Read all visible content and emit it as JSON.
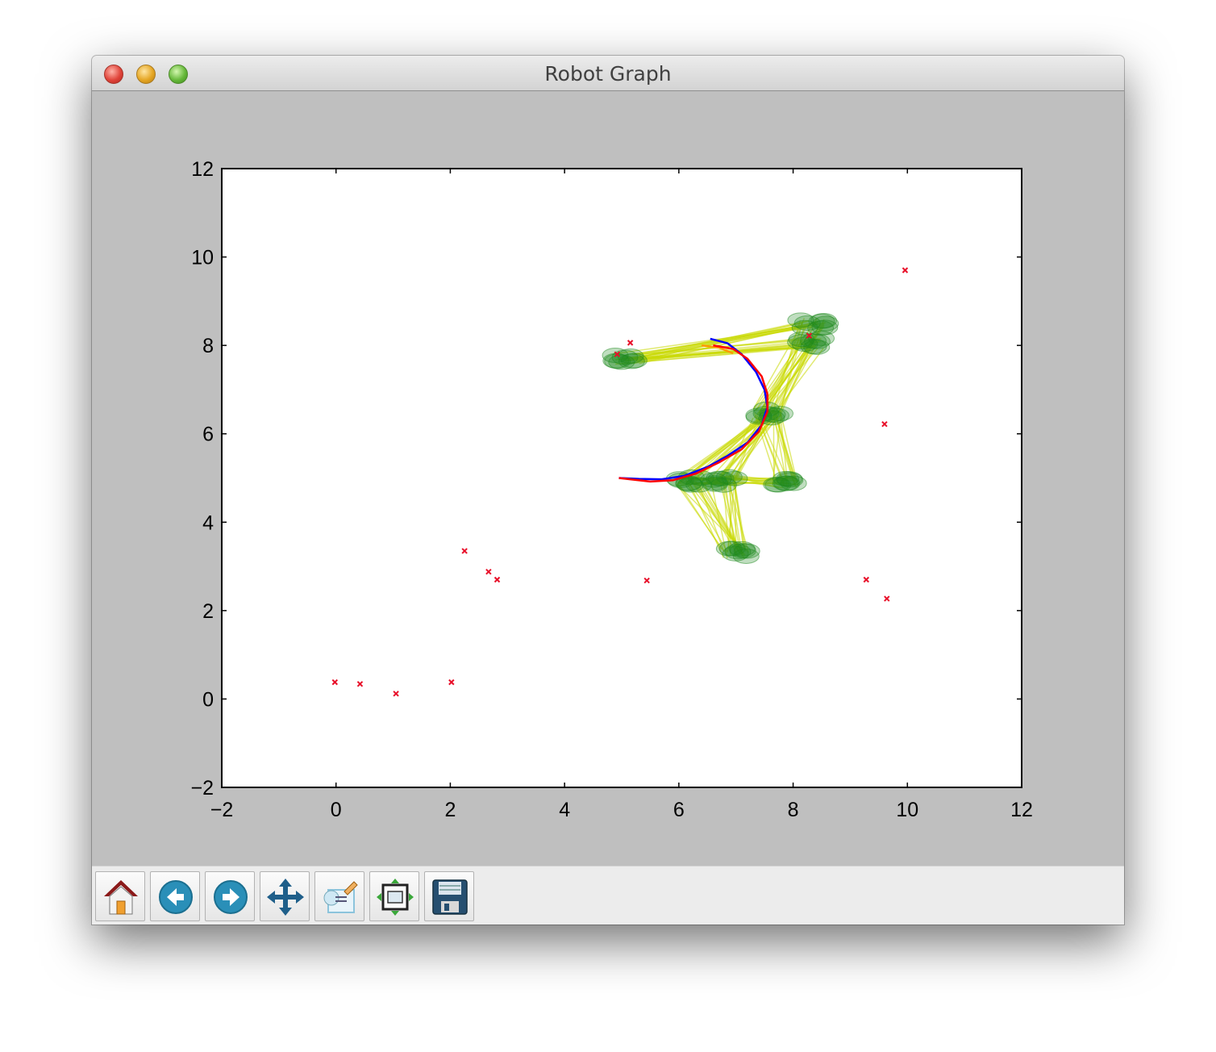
{
  "window": {
    "title": "Robot Graph"
  },
  "toolbar": {
    "buttons": [
      {
        "name": "home-button",
        "icon": "home-icon"
      },
      {
        "name": "back-button",
        "icon": "back-arrow-icon"
      },
      {
        "name": "forward-button",
        "icon": "forward-arrow-icon"
      },
      {
        "name": "pan-button",
        "icon": "pan-arrows-icon"
      },
      {
        "name": "zoom-button",
        "icon": "zoom-rect-icon"
      },
      {
        "name": "subplots-button",
        "icon": "subplots-config-icon"
      },
      {
        "name": "save-button",
        "icon": "floppy-disk-icon"
      }
    ]
  },
  "chart_data": {
    "type": "scatter",
    "xlim": [
      -2,
      12
    ],
    "ylim": [
      -2,
      12
    ],
    "xticks": [
      "−2",
      "0",
      "2",
      "4",
      "6",
      "8",
      "10",
      "12"
    ],
    "yticks": [
      "−2",
      "0",
      "2",
      "4",
      "6",
      "8",
      "10",
      "12"
    ],
    "grid": false,
    "colors": {
      "landmarks": "#e8102a",
      "particles": "#1e8a1e",
      "links": "#c8d800",
      "path_blue": "#0000ff",
      "path_red": "#ff0000",
      "path_orange": "#ff9900"
    },
    "landmarks": [
      [
        -0.02,
        0.38
      ],
      [
        0.42,
        0.34
      ],
      [
        1.05,
        0.12
      ],
      [
        2.02,
        0.38
      ],
      [
        2.25,
        3.35
      ],
      [
        2.67,
        2.88
      ],
      [
        2.82,
        2.7
      ],
      [
        5.44,
        2.68
      ],
      [
        4.92,
        7.8
      ],
      [
        5.15,
        8.06
      ],
      [
        9.28,
        2.7
      ],
      [
        9.64,
        2.27
      ],
      [
        9.6,
        6.22
      ],
      [
        9.96,
        9.7
      ],
      [
        8.28,
        8.22
      ]
    ],
    "particle_clusters": [
      [
        5.1,
        7.7
      ],
      [
        8.35,
        8.5
      ],
      [
        8.3,
        8.05
      ],
      [
        7.55,
        6.45
      ],
      [
        6.2,
        4.95
      ],
      [
        6.8,
        4.95
      ],
      [
        7.85,
        4.9
      ],
      [
        7.0,
        3.3
      ]
    ],
    "path_blue": [
      [
        6.55,
        8.15
      ],
      [
        6.85,
        8.05
      ],
      [
        7.1,
        7.8
      ],
      [
        7.35,
        7.4
      ],
      [
        7.5,
        7.0
      ],
      [
        7.55,
        6.6
      ],
      [
        7.45,
        6.2
      ],
      [
        7.2,
        5.8
      ],
      [
        6.85,
        5.5
      ],
      [
        6.5,
        5.25
      ],
      [
        6.1,
        5.05
      ],
      [
        5.7,
        4.97
      ],
      [
        5.3,
        4.98
      ],
      [
        4.95,
        5.0
      ]
    ],
    "path_red": [
      [
        6.6,
        8.0
      ],
      [
        6.95,
        7.92
      ],
      [
        7.2,
        7.7
      ],
      [
        7.45,
        7.3
      ],
      [
        7.55,
        6.9
      ],
      [
        7.55,
        6.5
      ],
      [
        7.4,
        6.05
      ],
      [
        7.1,
        5.65
      ],
      [
        6.7,
        5.35
      ],
      [
        6.3,
        5.1
      ],
      [
        5.9,
        4.95
      ],
      [
        5.5,
        4.92
      ],
      [
        5.15,
        4.97
      ],
      [
        4.95,
        5.0
      ]
    ],
    "path_orange": [
      [
        6.4,
        8.0
      ],
      [
        6.7,
        7.95
      ],
      [
        6.95,
        7.82
      ]
    ]
  }
}
